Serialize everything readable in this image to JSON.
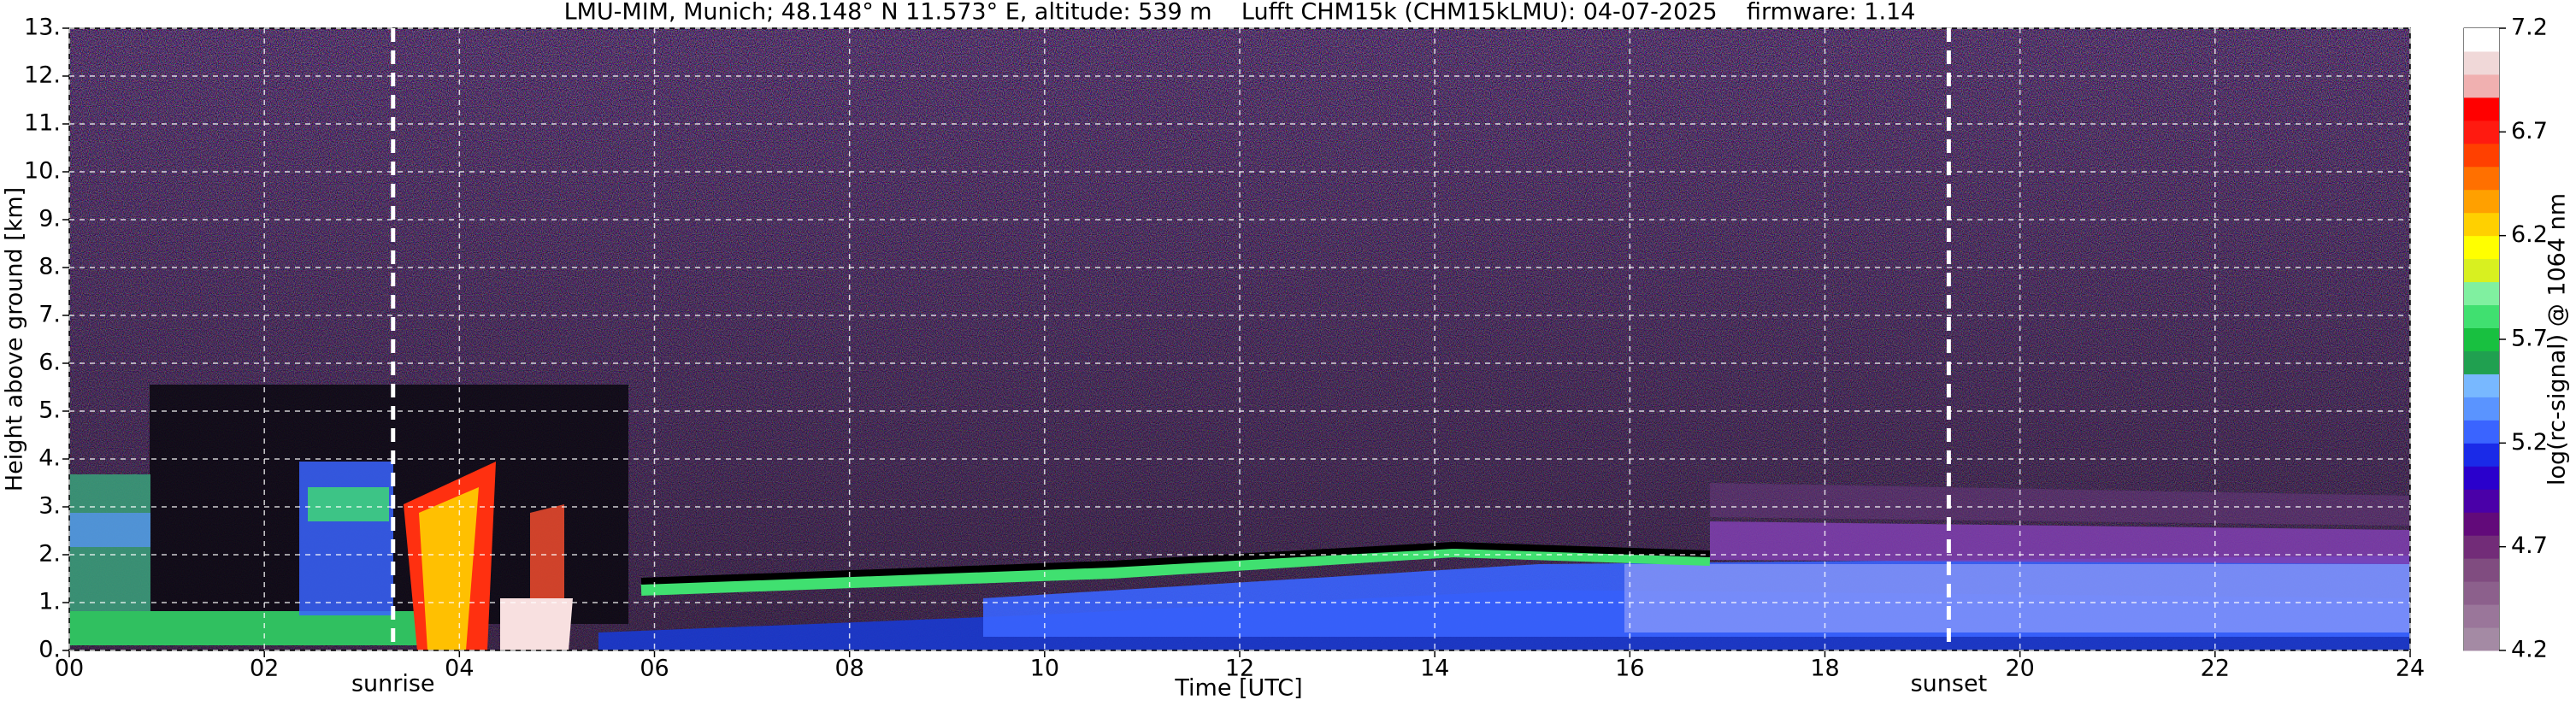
{
  "chart_data": {
    "type": "heatmap",
    "title": "LMU-MIM, Munich; 48.148° N 11.573° E, altitude: 539 m    Lufft CHM15k (CHM15kLMU): 04-07-2025    firmware: 1.14",
    "x_label": "Time [UTC]",
    "y_label": "Height above ground [km]",
    "colorbar_label": "log(rc-signal) @ 1064 nm",
    "xlim": [
      0,
      24
    ],
    "xticks": [
      {
        "value": 0,
        "label": "00"
      },
      {
        "value": 2,
        "label": "02"
      },
      {
        "value": 4,
        "label": "04"
      },
      {
        "value": 6,
        "label": "06"
      },
      {
        "value": 8,
        "label": "08"
      },
      10,
      12,
      14,
      16,
      18,
      20,
      22,
      24
    ],
    "ylim": [
      0,
      13
    ],
    "yticks": [
      {
        "value": 0,
        "label": "0."
      },
      {
        "value": 1,
        "label": "1."
      },
      {
        "value": 2,
        "label": "2."
      },
      {
        "value": 3,
        "label": "3."
      },
      {
        "value": 4,
        "label": "4."
      },
      {
        "value": 5,
        "label": "5."
      },
      {
        "value": 6,
        "label": "6."
      },
      {
        "value": 7,
        "label": "7."
      },
      {
        "value": 8,
        "label": "8."
      },
      {
        "value": 9,
        "label": "9."
      },
      {
        "value": 10,
        "label": "10."
      },
      {
        "value": 11,
        "label": "11."
      },
      {
        "value": 12,
        "label": "12."
      },
      {
        "value": 13,
        "label": "13."
      }
    ],
    "clim": [
      4.2,
      7.2
    ],
    "cticks": [
      4.2,
      4.7,
      5.2,
      5.7,
      6.2,
      6.7,
      7.2
    ],
    "colorscale": [
      "#a48aa4",
      "#9a769a",
      "#8c608c",
      "#804c80",
      "#722c78",
      "#620a7a",
      "#4a00a8",
      "#2a00cc",
      "#1a2ae8",
      "#3a64ff",
      "#5a94ff",
      "#78b8ff",
      "#20a050",
      "#18c040",
      "#40e070",
      "#80f0a0",
      "#d8f020",
      "#ffff00",
      "#ffd000",
      "#ffa000",
      "#ff7000",
      "#ff4000",
      "#ff1a10",
      "#ff0000",
      "#f0b0b0",
      "#f0d8d8",
      "#ffffff"
    ],
    "annotations": [
      {
        "text": "sunrise",
        "x": 3.32
      },
      {
        "text": "sunset",
        "x": 19.27
      }
    ],
    "grid": true
  }
}
